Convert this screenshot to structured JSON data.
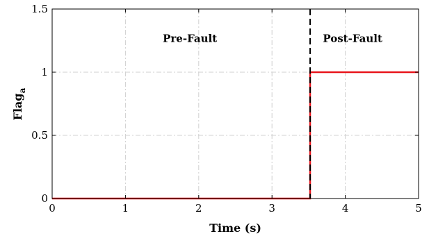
{
  "chart_data": {
    "type": "line",
    "title": "",
    "xlabel": "Time (s)",
    "ylabel": "Flag",
    "ylabel_subscript": "a",
    "xlim": [
      0,
      5
    ],
    "ylim": [
      0,
      1.5
    ],
    "x_ticks": [
      0,
      1,
      2,
      3,
      4,
      5
    ],
    "x_tick_labels": [
      "0",
      "1",
      "2",
      "3",
      "4",
      "5"
    ],
    "y_ticks": [
      0,
      0.5,
      1,
      1.5
    ],
    "y_tick_labels": [
      "0",
      "0.5",
      "1",
      "1.5"
    ],
    "grid": true,
    "series": [
      {
        "color": "#e8141b",
        "x": [
          0,
          3.52,
          3.52,
          5
        ],
        "y": [
          0,
          0,
          1,
          1
        ]
      }
    ],
    "fault_line": {
      "x": 3.52,
      "color": "#000000",
      "style": "dashed"
    },
    "annotations": [
      {
        "text": "Pre-Fault",
        "x": 1.88,
        "y": 1.24
      },
      {
        "text": "Post-Fault",
        "x": 4.1,
        "y": 1.24
      }
    ]
  }
}
